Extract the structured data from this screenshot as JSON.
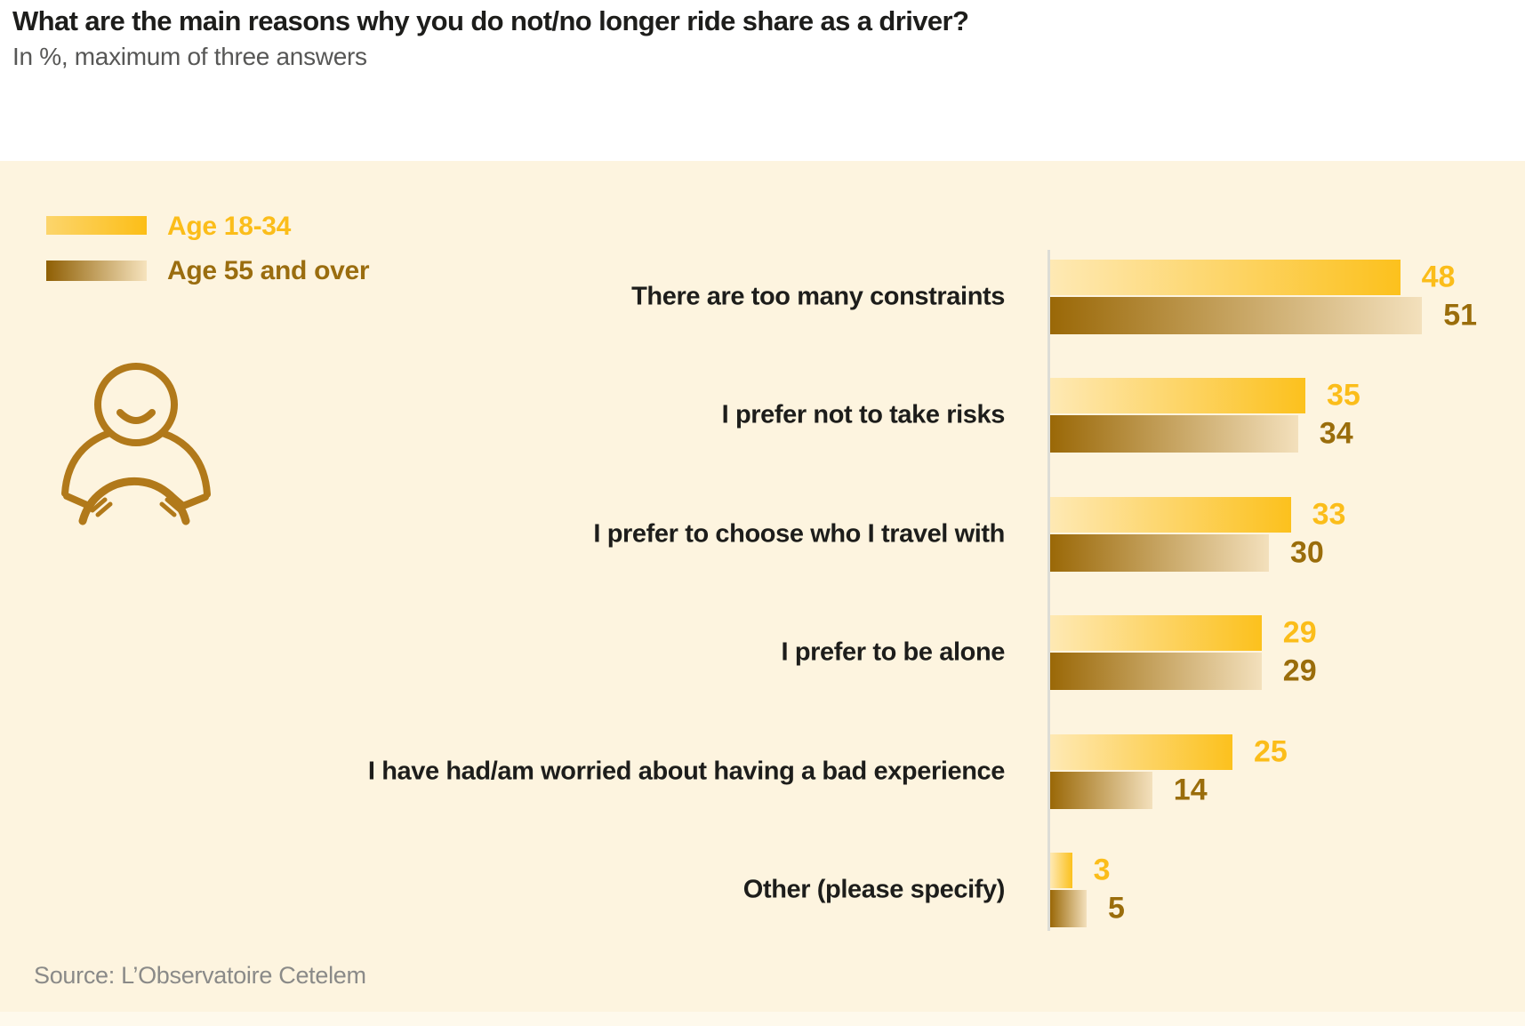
{
  "colors": {
    "page_bg": "#FFFFFF",
    "panel_bg": "#FDF4DF",
    "axis": "#DCDCD6",
    "title": "#1D1D1B",
    "subtitle": "#575756",
    "category": "#1D1D1B",
    "source": "#8A8A88",
    "icon": "#B1791A"
  },
  "legend": {
    "items": [
      {
        "label": "Age 18-34",
        "text_color": "#FBBD1A",
        "swatch_gradient": [
          "#FCD56C",
          "#FCBE17"
        ]
      },
      {
        "label": "Age 55 and over",
        "text_color": "#9A6D0F",
        "swatch_gradient": [
          "#8F5F04",
          "#F6E3BD"
        ]
      }
    ]
  },
  "icon": {
    "name": "driver-steering-wheel-icon"
  },
  "source": {
    "text": "Source: L’Observatoire Cetelem"
  },
  "chart_data": {
    "type": "bar",
    "orientation": "horizontal",
    "title": "What are the main reasons why you do not/no longer ride share as a driver?",
    "subtitle": "In %, maximum of three answers",
    "unit": "%",
    "grid": false,
    "legend_position": "top-left",
    "value_labels": "end-of-bar",
    "xlim": [
      0,
      65
    ],
    "categories": [
      "There are too many constraints",
      "I prefer not to take risks",
      "I prefer to choose who I travel with",
      "I prefer to be alone",
      "I have had/am worried about having a bad experience",
      "Other (please specify)"
    ],
    "series": [
      {
        "name": "Age 18-34",
        "values": [
          48,
          35,
          33,
          29,
          25,
          3
        ],
        "value_color": "#FBBD1A",
        "bar_gradient": [
          "#FEE9B4",
          "#FCC11D"
        ]
      },
      {
        "name": "Age 55 and over",
        "values": [
          51,
          34,
          30,
          29,
          14,
          5
        ],
        "value_color": "#9A6D0B",
        "bar_gradient": [
          "#9A6807",
          "#F3E0BC"
        ]
      }
    ]
  }
}
